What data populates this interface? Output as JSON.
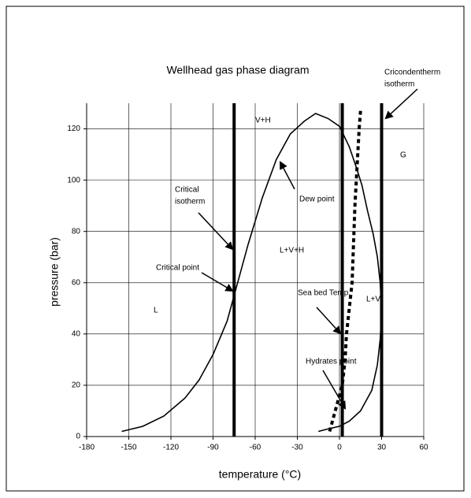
{
  "chart_data": {
    "type": "line",
    "title": "Wellhead gas phase diagram",
    "xlabel": "temperature  (°C)",
    "ylabel": "pressure  (bar)",
    "xlim": [
      -180,
      60
    ],
    "xticks": [
      -180,
      -150,
      -120,
      -90,
      -60,
      -30,
      0,
      30,
      60
    ],
    "ylim": [
      0,
      130
    ],
    "yticks": [
      0,
      20,
      40,
      60,
      80,
      100,
      120
    ],
    "grid": true,
    "series": [
      {
        "name": "Dew point",
        "color": "#000000",
        "style": "solid",
        "x": [
          -155,
          -140,
          -125,
          -110,
          -100,
          -90,
          -80,
          -75,
          -65,
          -55,
          -45,
          -35,
          -25,
          -17,
          -8,
          0,
          7,
          12,
          16,
          20,
          24,
          27,
          29,
          30,
          29,
          27,
          23,
          15,
          7,
          0,
          -8,
          -15
        ],
        "values": [
          2,
          4,
          8,
          15,
          22,
          32,
          45,
          55,
          75,
          93,
          108,
          118,
          123,
          126,
          124,
          121,
          113,
          105,
          98,
          88,
          79,
          70,
          60,
          48,
          38,
          28,
          18,
          10,
          6,
          4,
          3,
          2
        ]
      },
      {
        "name": "Hydrates point",
        "color": "#000000",
        "style": "dashed",
        "x": [
          -7,
          -4,
          -1,
          2,
          4,
          5,
          7,
          9,
          10,
          11,
          12,
          13,
          14,
          15
        ],
        "values": [
          2,
          8,
          14,
          20,
          30,
          40,
          50,
          60,
          75,
          90,
          100,
          110,
          120,
          127
        ]
      }
    ],
    "vlines": [
      -75,
      2,
      30
    ],
    "annotations": [
      {
        "lines": [
          "Cricondentherm",
          "isotherm"
        ]
      },
      {
        "lines": [
          "Critical",
          "isotherm"
        ]
      },
      {
        "lines": [
          "Dew point"
        ]
      },
      {
        "lines": [
          "Critical point"
        ]
      },
      {
        "lines": [
          "Sea bed Temp."
        ]
      },
      {
        "lines": [
          "Hydrates point"
        ]
      }
    ],
    "regions": [
      "V+H",
      "G",
      "L+V+H",
      "L",
      "L+V"
    ]
  }
}
